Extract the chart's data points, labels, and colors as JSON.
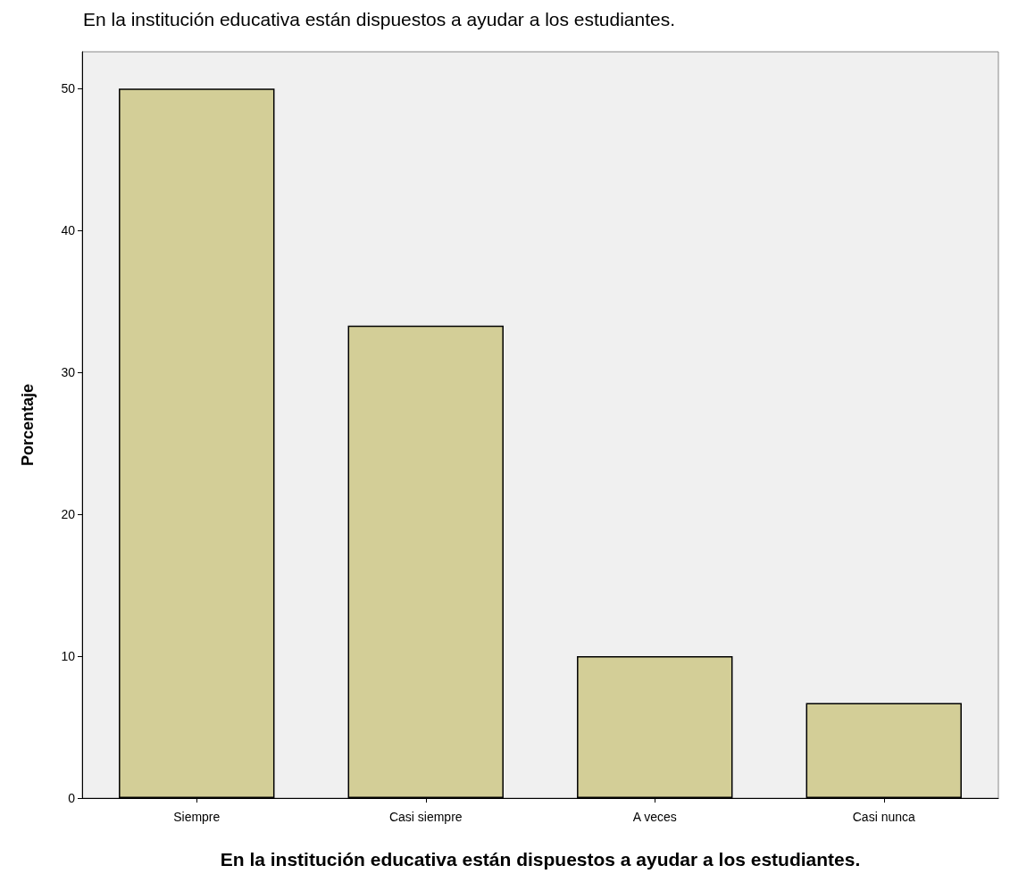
{
  "chart_data": {
    "type": "bar",
    "title": "En la institución educativa están dispuestos a ayudar a los estudiantes.",
    "xlabel": "En la institución educativa están dispuestos a ayudar a los estudiantes.",
    "ylabel": "Porcentaje",
    "categories": [
      "Siempre",
      "Casi siempre",
      "A veces",
      "Casi nunca"
    ],
    "values": [
      50,
      33.3,
      10,
      6.7
    ],
    "color": "#d3ce97",
    "ylim": [
      0,
      52.6
    ],
    "yticks": [
      0,
      10,
      20,
      30,
      40,
      50
    ],
    "grid": false
  }
}
